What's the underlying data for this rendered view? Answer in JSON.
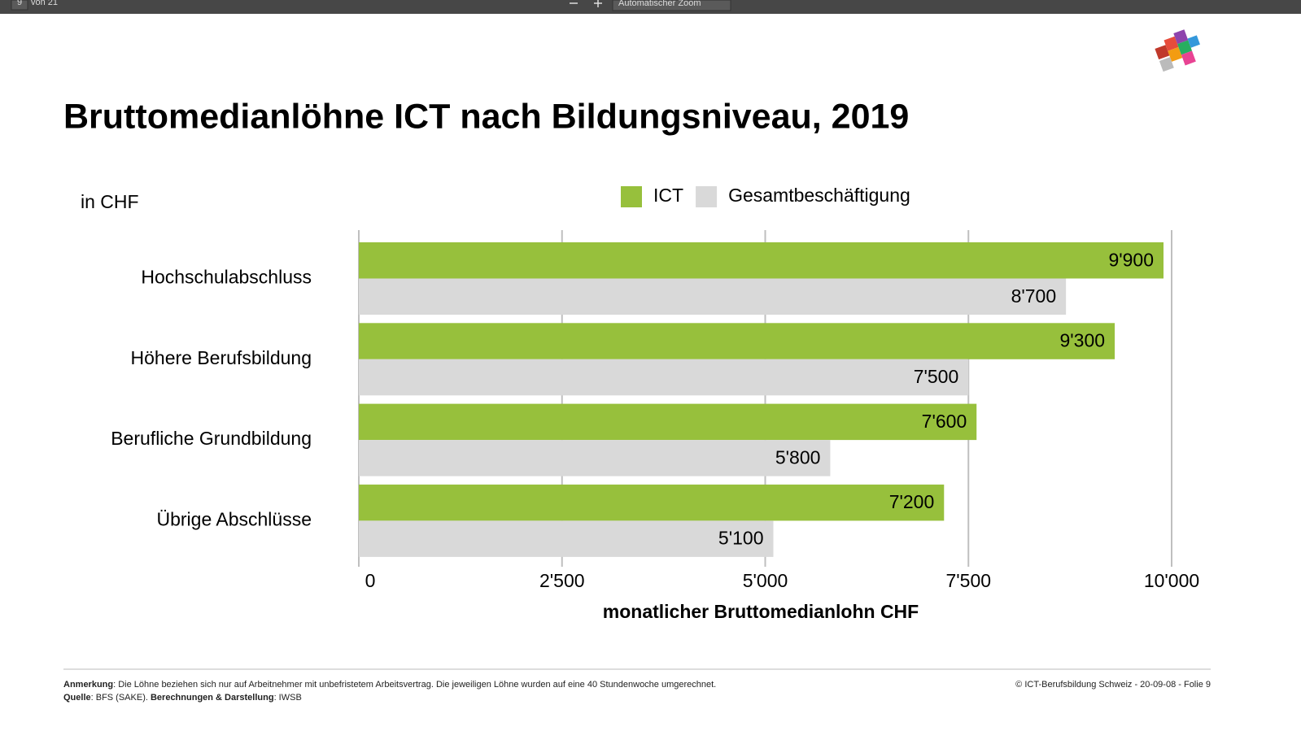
{
  "toolbar": {
    "page": "9",
    "page_count": "von 21",
    "zoom": "Automatischer Zoom"
  },
  "chart_data": {
    "type": "bar",
    "orientation": "horizontal",
    "title": "Bruttomedianlöhne ICT nach Bildungsniveau, 2019",
    "unit_label": "in CHF",
    "xlabel": "monatlicher Bruttomedianlohn CHF",
    "categories": [
      "Hochschulabschluss",
      "Höhere Berufsbildung",
      "Berufliche Grundbildung",
      "Übrige Abschlüsse"
    ],
    "series": [
      {
        "name": "ICT",
        "color": "#97c03c",
        "values": [
          9900,
          9300,
          7600,
          7200
        ],
        "value_labels": [
          "9'900",
          "9'300",
          "7'600",
          "7'200"
        ]
      },
      {
        "name": "Gesamtbeschäftigung",
        "color": "#d9d9d9",
        "values": [
          8700,
          7500,
          5800,
          5100
        ],
        "value_labels": [
          "8'700",
          "7'500",
          "5'800",
          "5'100"
        ]
      }
    ],
    "xlim": [
      0,
      10000
    ],
    "xticks": [
      0,
      {
        "value": 2500,
        "label": "2'500"
      },
      {
        "value": 5000,
        "label": "5'000"
      },
      {
        "value": 7500,
        "label": "7'500"
      },
      {
        "value": 10000,
        "label": "10'000"
      }
    ],
    "grid": true,
    "legend": "top"
  },
  "footer": {
    "note_label": "Anmerkung",
    "note_text": ": Die Löhne beziehen sich nur auf Arbeitnehmer mit unbefristetem Arbeitsvertrag. Die jeweiligen Löhne wurden auf eine 40 Stundenwoche umgerechnet.",
    "source_label": "Quelle",
    "source_text": ": BFS (SAKE). ",
    "calc_label": "Berechnungen & Darstellung",
    "calc_text": ": IWSB",
    "copyright": "© ICT-Berufsbildung Schweiz - 20-09-08 - Folie 9"
  }
}
